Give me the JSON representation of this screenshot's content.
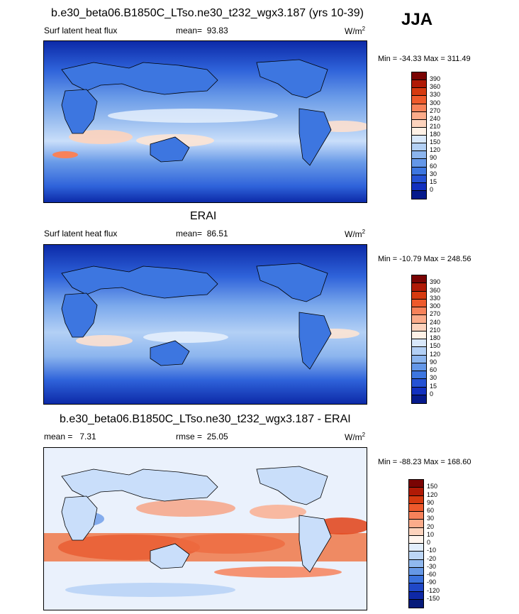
{
  "season": "JJA",
  "panel1": {
    "title": "b.e30_beta06.B1850C_LTso.ne30_t232_wgx3.187 (yrs 10-39)",
    "variable": "Surf latent heat flux",
    "mean_label": "mean=",
    "mean_value": "93.83",
    "units": "W/m",
    "units_exp": "2",
    "minmax": "Min = -34.33 Max = 311.49"
  },
  "panel2": {
    "title": "ERAI",
    "variable": "Surf latent heat flux",
    "mean_label": "mean=",
    "mean_value": "86.51",
    "units": "W/m",
    "units_exp": "2",
    "minmax": "Min = -10.79 Max = 248.56"
  },
  "panel3": {
    "title": "b.e30_beta06.B1850C_LTso.ne30_t232_wgx3.187 - ERAI",
    "mean_label": "mean =",
    "mean_value": "7.31",
    "rmse_label": "rmse =",
    "rmse_value": "25.05",
    "units": "W/m",
    "units_exp": "2",
    "minmax": "Min = -88.23 Max = 168.60"
  },
  "colorbar_abs": {
    "labels": [
      "390",
      "360",
      "330",
      "300",
      "270",
      "240",
      "210",
      "180",
      "150",
      "120",
      "90",
      "60",
      "30",
      "15",
      "0"
    ],
    "colors": [
      "#7a0403",
      "#b01a06",
      "#d63a10",
      "#ee5a2c",
      "#f7825a",
      "#fbab8a",
      "#fdd3bd",
      "#fff1e6",
      "#d9e8fb",
      "#b3d0f5",
      "#8cb5ee",
      "#6497e8",
      "#3d76e0",
      "#2552d4",
      "#1230bf",
      "#061a8c"
    ]
  },
  "colorbar_diff": {
    "labels": [
      "150",
      "120",
      "90",
      "60",
      "30",
      "20",
      "10",
      "0",
      "-10",
      "-20",
      "-30",
      "-60",
      "-90",
      "-120",
      "-150"
    ],
    "colors": [
      "#7a0403",
      "#b01a06",
      "#d63a10",
      "#ee5a2c",
      "#f7825a",
      "#fbab8a",
      "#fdd3bd",
      "#fff5ee",
      "#e2eefc",
      "#bcd6f6",
      "#90b8ee",
      "#6698e6",
      "#3b72dd",
      "#2048c7",
      "#0e28a6",
      "#061a7a"
    ]
  }
}
